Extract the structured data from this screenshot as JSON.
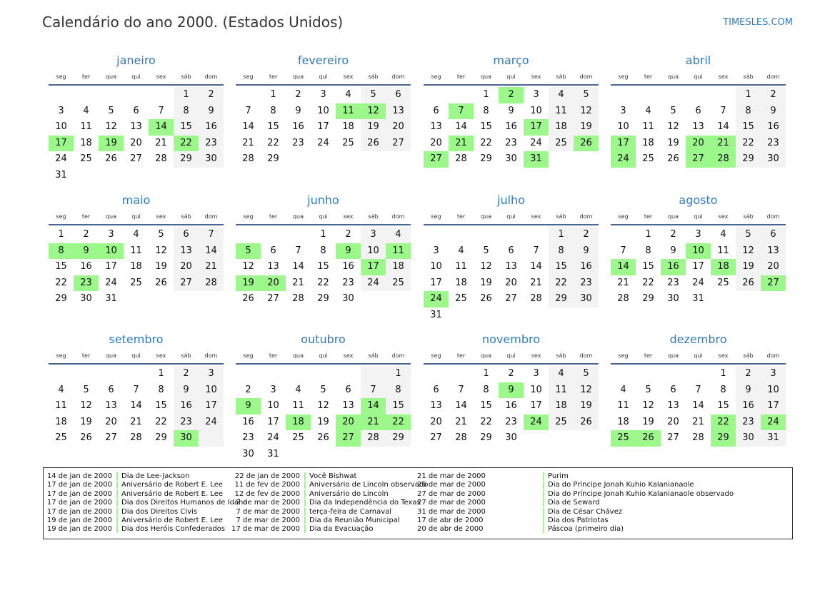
{
  "header": {
    "title": "Calendário do ano 2000. (Estados Unidos)",
    "site": "TIMESLES.COM"
  },
  "weekdays": [
    "seg",
    "ter",
    "qua",
    "qui",
    "sex",
    "sáb",
    "dom"
  ],
  "colors": {
    "accent": "#2f7ac0",
    "holiday": "#9cf88a",
    "weekend": "#f3f3f3",
    "rule": "#4a6592"
  },
  "months": [
    {
      "name": "janeiro",
      "start": 5,
      "days": 31,
      "holidays": [
        14,
        17,
        19,
        22
      ]
    },
    {
      "name": "fevereiro",
      "start": 1,
      "days": 29,
      "holidays": [
        11,
        12
      ]
    },
    {
      "name": "março",
      "start": 2,
      "days": 31,
      "holidays": [
        2,
        7,
        17,
        21,
        26,
        27,
        31
      ]
    },
    {
      "name": "abril",
      "start": 5,
      "days": 30,
      "holidays": [
        17,
        20,
        21,
        24,
        27,
        28
      ]
    },
    {
      "name": "maio",
      "start": 0,
      "days": 31,
      "holidays": [
        8,
        9,
        10,
        23
      ]
    },
    {
      "name": "junho",
      "start": 3,
      "days": 30,
      "holidays": [
        5,
        9,
        11,
        17,
        19,
        20
      ]
    },
    {
      "name": "julho",
      "start": 5,
      "days": 31,
      "holidays": [
        24
      ]
    },
    {
      "name": "agosto",
      "start": 1,
      "days": 31,
      "holidays": [
        10,
        14,
        16,
        18,
        27
      ]
    },
    {
      "name": "setembro",
      "start": 4,
      "days": 30,
      "holidays": [
        30
      ]
    },
    {
      "name": "outubro",
      "start": 6,
      "days": 31,
      "holidays": [
        9,
        14,
        18,
        20,
        21,
        22,
        27
      ]
    },
    {
      "name": "novembro",
      "start": 2,
      "days": 30,
      "holidays": [
        9,
        24
      ]
    },
    {
      "name": "dezembro",
      "start": 4,
      "days": 31,
      "holidays": [
        22,
        24,
        25,
        26,
        29
      ]
    }
  ],
  "legend": [
    [
      {
        "date": "14 de jan de 2000",
        "name": "Dia de Lee-Jackson"
      },
      {
        "date": "17 de jan de 2000",
        "name": "Aniversário de Robert E. Lee"
      },
      {
        "date": "17 de jan de 2000",
        "name": "Aniversário de Robert E. Lee"
      },
      {
        "date": "17 de jan de 2000",
        "name": "Dia dos Direitos Humanos de Idaho"
      },
      {
        "date": "17 de jan de 2000",
        "name": "Dia dos Direitos Civis"
      },
      {
        "date": "19 de jan de 2000",
        "name": "Aniversário de Robert E. Lee"
      },
      {
        "date": "19 de jan de 2000",
        "name": "Dia dos Heróis Confederados"
      }
    ],
    [
      {
        "date": "22 de jan de 2000",
        "name": "Você Bishwat"
      },
      {
        "date": "11 de fev de 2000",
        "name": "Aniversário de Lincoln observado"
      },
      {
        "date": "12 de fev de 2000",
        "name": "Aniversário do Lincoln"
      },
      {
        "date": "2 de mar de 2000",
        "name": "Dia da Independência do Texas"
      },
      {
        "date": "7 de mar de 2000",
        "name": "terça-feira de Carnaval"
      },
      {
        "date": "7 de mar de 2000",
        "name": "Dia da Reunião Municipal"
      },
      {
        "date": "17 de mar de 2000",
        "name": "Dia da Evacuação"
      }
    ],
    [
      {
        "date": "21 de mar de 2000",
        "name": "Purim"
      },
      {
        "date": "26 de mar de 2000",
        "name": "Dia do Príncipe Jonah Kuhio Kalanianaole"
      },
      {
        "date": "27 de mar de 2000",
        "name": "Dia do Príncipe Jonah Kuhio Kalanianaole observado"
      },
      {
        "date": "27 de mar de 2000",
        "name": "Dia de Seward"
      },
      {
        "date": "31 de mar de 2000",
        "name": "Dia de César Chávez"
      },
      {
        "date": "17 de abr de 2000",
        "name": "Dia dos Patriotas"
      },
      {
        "date": "20 de abr de 2000",
        "name": "Páscoa (primeiro dia)"
      }
    ]
  ]
}
